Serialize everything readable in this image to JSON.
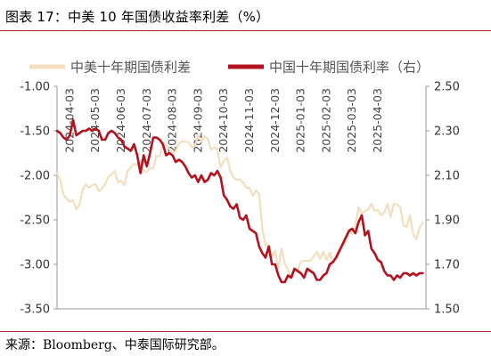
{
  "figure": {
    "title": "图表 17：中美 10 年国债收益率利差（%）",
    "source": "来源：Bloomberg、中泰国际研究部。"
  },
  "colors": {
    "spread": "#f3dfbf",
    "yield": "#b2141f",
    "rule": "#b3282d",
    "axis": "#999999"
  },
  "chart_data": {
    "type": "line",
    "legend_position": "top",
    "grid": false,
    "x_tick_labels": [
      "2024-04-03",
      "2024-05-03",
      "2024-06-03",
      "2024-07-03",
      "2024-08-03",
      "2024-09-03",
      "2024-10-03",
      "2024-11-03",
      "2024-12-03",
      "2025-01-03",
      "2025-02-03",
      "2025-03-03",
      "2025-04-03"
    ],
    "x_range": [
      0,
      115
    ],
    "y_left": {
      "range": [
        -3.5,
        -1.0
      ],
      "ticks": [
        "-1.00",
        "-1.50",
        "-2.00",
        "-2.50",
        "-3.00",
        "-3.50"
      ]
    },
    "y_right": {
      "range": [
        1.5,
        2.5
      ],
      "ticks": [
        "2.50",
        "2.30",
        "2.10",
        "1.90",
        "1.70",
        "1.50"
      ]
    },
    "series": [
      {
        "name": "中美十年期国债利差",
        "axis": "left",
        "x": [
          0,
          1,
          2,
          3,
          4,
          5,
          6,
          7,
          8,
          9,
          10,
          11,
          12,
          13,
          14,
          15,
          16,
          17,
          18,
          19,
          20,
          21,
          22,
          23,
          24,
          25,
          26,
          27,
          28,
          29,
          30,
          31,
          32,
          33,
          34,
          35,
          36,
          37,
          38,
          39,
          40,
          41,
          42,
          43,
          44,
          45,
          46,
          47,
          48,
          49,
          50,
          51,
          52,
          53,
          54,
          55,
          56,
          57,
          58,
          59,
          60,
          61,
          62,
          63,
          64,
          65,
          66,
          67,
          68,
          69,
          70,
          71,
          72,
          73,
          74,
          75,
          76,
          77,
          78,
          79,
          80,
          81,
          82,
          83,
          84,
          85,
          86,
          87,
          88,
          89,
          90,
          91,
          92,
          93,
          94,
          95,
          96,
          97,
          98,
          99,
          100,
          101,
          102,
          103,
          104,
          105,
          106,
          107,
          108,
          109,
          110,
          111,
          112,
          113,
          114
        ],
        "values": [
          -1.98,
          -2.05,
          -2.22,
          -2.26,
          -2.3,
          -2.28,
          -2.38,
          -2.33,
          -2.16,
          -2.1,
          -2.14,
          -2.11,
          -2.1,
          -2.18,
          -2.15,
          -2.1,
          -2.02,
          -1.99,
          -1.95,
          -2.08,
          -2.06,
          -2.11,
          -1.95,
          -1.91,
          -1.87,
          -1.89,
          -1.83,
          -1.95,
          -1.96,
          -1.92,
          -1.92,
          -1.78,
          -1.79,
          -1.64,
          -1.66,
          -1.7,
          -1.74,
          -1.73,
          -1.64,
          -1.62,
          -1.62,
          -1.63,
          -1.68,
          -1.67,
          -1.54,
          -1.62,
          -1.56,
          -1.59,
          -1.71,
          -1.69,
          -1.71,
          -1.91,
          -1.84,
          -1.8,
          -1.95,
          -2.02,
          -2.05,
          -2.05,
          -2.08,
          -2.14,
          -2.14,
          -2.23,
          -2.17,
          -2.21,
          -2.6,
          -2.79,
          -2.78,
          -2.91,
          -2.85,
          -3.05,
          -2.82,
          -2.99,
          -3.06,
          -3.15,
          -3.06,
          -3.06,
          -2.97,
          -2.96,
          -2.96,
          -2.96,
          -2.91,
          -2.86,
          -2.94,
          -2.86,
          -2.95,
          -2.87,
          -2.98,
          -2.89,
          -2.84,
          -2.8,
          -2.74,
          -2.61,
          -2.66,
          -2.56,
          -2.36,
          -2.43,
          -2.4,
          -2.38,
          -2.32,
          -2.4,
          -2.39,
          -2.45,
          -2.42,
          -2.32,
          -2.47,
          -2.32,
          -2.33,
          -2.36,
          -2.56,
          -2.58,
          -2.45,
          -2.66,
          -2.72,
          -2.59,
          -2.53
        ]
      },
      {
        "name": "中国十年期国债利率（右）",
        "axis": "right",
        "x": [
          0,
          1,
          2,
          3,
          4,
          5,
          6,
          7,
          8,
          9,
          10,
          11,
          12,
          13,
          14,
          15,
          16,
          17,
          18,
          19,
          20,
          21,
          22,
          23,
          24,
          25,
          26,
          27,
          28,
          29,
          30,
          31,
          32,
          33,
          34,
          35,
          36,
          37,
          38,
          39,
          40,
          41,
          42,
          43,
          44,
          45,
          46,
          47,
          48,
          49,
          50,
          51,
          52,
          53,
          54,
          55,
          56,
          57,
          58,
          59,
          60,
          61,
          62,
          63,
          64,
          65,
          66,
          67,
          68,
          69,
          70,
          71,
          72,
          73,
          74,
          75,
          76,
          77,
          78,
          79,
          80,
          81,
          82,
          83,
          84,
          85,
          86,
          87,
          88,
          89,
          90,
          91,
          92,
          93,
          94,
          95,
          96,
          97,
          98,
          99,
          100,
          101,
          102,
          103,
          104,
          105,
          106,
          107,
          108,
          109,
          110,
          111,
          112,
          113,
          114
        ],
        "values": [
          2.3,
          2.29,
          2.27,
          2.26,
          2.28,
          2.35,
          2.28,
          2.29,
          2.3,
          2.3,
          2.31,
          2.3,
          2.31,
          2.3,
          2.26,
          2.26,
          2.29,
          2.3,
          2.29,
          2.27,
          2.26,
          2.23,
          2.22,
          2.21,
          2.24,
          2.19,
          2.11,
          2.19,
          2.14,
          2.2,
          2.27,
          2.27,
          2.26,
          2.24,
          2.19,
          2.2,
          2.19,
          2.16,
          2.17,
          2.16,
          2.14,
          2.11,
          2.09,
          2.1,
          2.07,
          2.1,
          2.07,
          2.08,
          2.11,
          2.1,
          2.12,
          2.09,
          2.01,
          1.99,
          1.96,
          1.95,
          1.97,
          1.91,
          1.9,
          1.92,
          1.86,
          1.85,
          1.84,
          1.78,
          1.75,
          1.73,
          1.78,
          1.7,
          1.7,
          1.65,
          1.62,
          1.62,
          1.65,
          1.64,
          1.68,
          1.67,
          1.66,
          1.64,
          1.68,
          1.67,
          1.66,
          1.63,
          1.63,
          1.65,
          1.66,
          1.7,
          1.71,
          1.73,
          1.76,
          1.79,
          1.82,
          1.85,
          1.86,
          1.84,
          1.89,
          1.92,
          1.83,
          1.85,
          1.77,
          1.75,
          1.72,
          1.71,
          1.67,
          1.65,
          1.65,
          1.63,
          1.65,
          1.64,
          1.66,
          1.66,
          1.65,
          1.66,
          1.65,
          1.66,
          1.66
        ]
      }
    ]
  }
}
